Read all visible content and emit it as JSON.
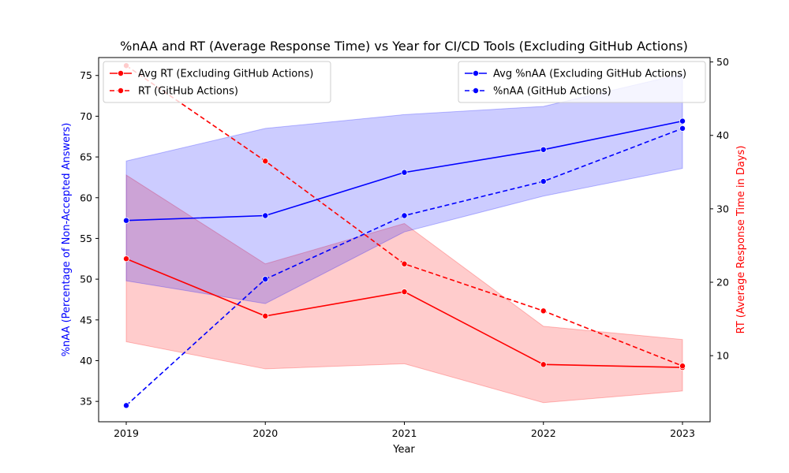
{
  "chart_data": {
    "type": "line",
    "title": "%nAA and RT (Average Response Time) vs Year for CI/CD Tools (Excluding GitHub Actions)",
    "xlabel": "Year",
    "ylabel_left": "%nAA (Percentage of Non-Accepted Answers)",
    "ylabel_right": "RT (Average Response Time in Days)",
    "x": [
      "2019",
      "2020",
      "2021",
      "2022",
      "2023"
    ],
    "ylim_left": [
      32.5,
      77.2
    ],
    "ylim_right": [
      1.0,
      50.6
    ],
    "yticks_left": [
      "35",
      "40",
      "45",
      "50",
      "55",
      "60",
      "65",
      "70",
      "75"
    ],
    "yticks_right": [
      "10",
      "20",
      "30",
      "40",
      "50"
    ],
    "grid": false,
    "legend_left": "top-left",
    "legend_right": "top-right",
    "colors": {
      "left_axis": "#0000ff",
      "right_axis": "#ff0000"
    },
    "series": [
      {
        "name": "Avg RT (Excluding GitHub Actions)",
        "axis": "right",
        "color": "#ff0000",
        "linestyle": "solid",
        "values": [
          23.2,
          15.4,
          18.7,
          8.8,
          8.4
        ],
        "band_low": [
          11.9,
          8.2,
          8.9,
          3.6,
          5.2
        ],
        "band_high": [
          34.6,
          22.5,
          28.0,
          14.0,
          12.2
        ]
      },
      {
        "name": "RT (GitHub Actions)",
        "axis": "right",
        "color": "#ff0000",
        "linestyle": "dashed",
        "values": [
          49.5,
          36.5,
          22.5,
          16.1,
          8.6
        ]
      },
      {
        "name": "Avg %nAA (Excluding GitHub Actions)",
        "axis": "left",
        "color": "#0000ff",
        "linestyle": "solid",
        "values": [
          57.2,
          57.8,
          63.1,
          65.9,
          69.4
        ],
        "band_low": [
          49.8,
          47.0,
          55.8,
          60.2,
          63.6
        ],
        "band_high": [
          64.5,
          68.5,
          70.2,
          71.2,
          75.2
        ]
      },
      {
        "name": "%nAA (GitHub Actions)",
        "axis": "left",
        "color": "#0000ff",
        "linestyle": "dashed",
        "values": [
          34.5,
          50.0,
          57.8,
          62.0,
          68.5
        ]
      }
    ]
  }
}
